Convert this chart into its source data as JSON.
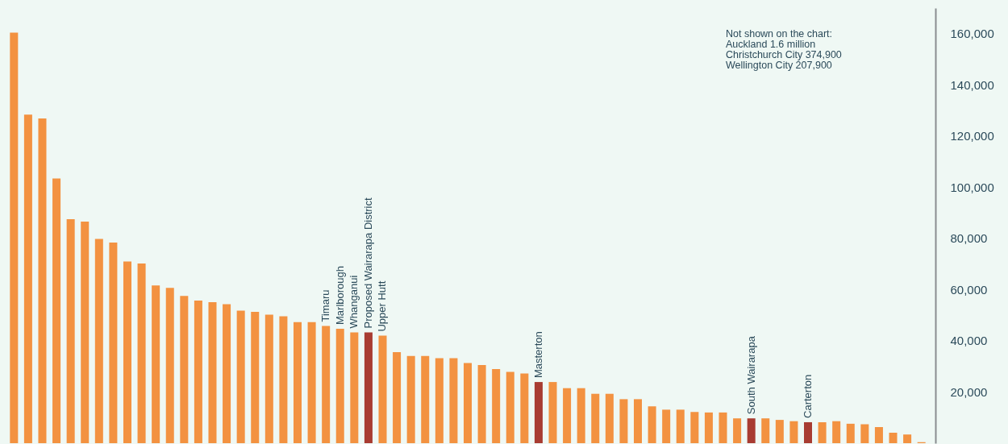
{
  "chart_data": {
    "type": "bar",
    "categories": [
      null,
      null,
      null,
      null,
      null,
      null,
      null,
      null,
      null,
      null,
      null,
      null,
      null,
      null,
      null,
      null,
      null,
      null,
      null,
      null,
      null,
      null,
      "Timaru",
      "Marlborough",
      "Whanganui",
      "Proposed Wairarapa District",
      "Upper Hutt",
      null,
      null,
      null,
      null,
      null,
      null,
      null,
      null,
      null,
      null,
      "Masterton",
      null,
      null,
      null,
      null,
      null,
      null,
      null,
      null,
      null,
      null,
      null,
      null,
      null,
      null,
      "South Wairarapa",
      null,
      null,
      null,
      "Carterton",
      null,
      null,
      null,
      null,
      null,
      null,
      null,
      null
    ],
    "values": [
      160400,
      128400,
      126900,
      103400,
      87500,
      86600,
      79800,
      78400,
      71000,
      70200,
      61600,
      60700,
      57500,
      55700,
      55100,
      54300,
      51800,
      51300,
      50200,
      49600,
      47300,
      47300,
      45800,
      44700,
      43300,
      43300,
      42000,
      35600,
      34100,
      34100,
      33200,
      33200,
      31300,
      30500,
      29000,
      27900,
      27200,
      23900,
      23900,
      21500,
      21500,
      19300,
      19300,
      17200,
      17200,
      14400,
      13100,
      13100,
      12200,
      12000,
      12000,
      9700,
      9700,
      9700,
      9100,
      8600,
      8200,
      8200,
      8600,
      7600,
      7400,
      6300,
      4100,
      3400,
      400
    ],
    "colors": [
      "#f39241",
      "#f39241",
      "#f39241",
      "#f39241",
      "#f39241",
      "#f39241",
      "#f39241",
      "#f39241",
      "#f39241",
      "#f39241",
      "#f39241",
      "#f39241",
      "#f39241",
      "#f39241",
      "#f39241",
      "#f39241",
      "#f39241",
      "#f39241",
      "#f39241",
      "#f39241",
      "#f39241",
      "#f39241",
      "#f39241",
      "#f39241",
      "#f39241",
      "#a83c32",
      "#f39241",
      "#f39241",
      "#f39241",
      "#f39241",
      "#f39241",
      "#f39241",
      "#f39241",
      "#f39241",
      "#f39241",
      "#f39241",
      "#f39241",
      "#a83c32",
      "#f39241",
      "#f39241",
      "#f39241",
      "#f39241",
      "#f39241",
      "#f39241",
      "#f39241",
      "#f39241",
      "#f39241",
      "#f39241",
      "#f39241",
      "#f39241",
      "#f39241",
      "#f39241",
      "#a83c32",
      "#f39241",
      "#f39241",
      "#f39241",
      "#a83c32",
      "#f39241",
      "#f39241",
      "#f39241",
      "#f39241",
      "#f39241",
      "#f39241",
      "#f39241",
      "#f39241"
    ],
    "ylim": [
      0,
      170000
    ],
    "yticks": [
      {
        "value": 20000,
        "label": "20,000"
      },
      {
        "value": 40000,
        "label": "40,000"
      },
      {
        "value": 60000,
        "label": "60,000"
      },
      {
        "value": 80000,
        "label": "80,000"
      },
      {
        "value": 100000,
        "label": "100,000"
      },
      {
        "value": 120000,
        "label": "120,000"
      },
      {
        "value": 140000,
        "label": "140,000"
      },
      {
        "value": 160000,
        "label": "160,000"
      }
    ],
    "grid": false,
    "annotations": [
      "Not shown on the chart:\nAuckland 1.6 million\nChristchurch City 374,900\nWellington City 207,900"
    ]
  }
}
